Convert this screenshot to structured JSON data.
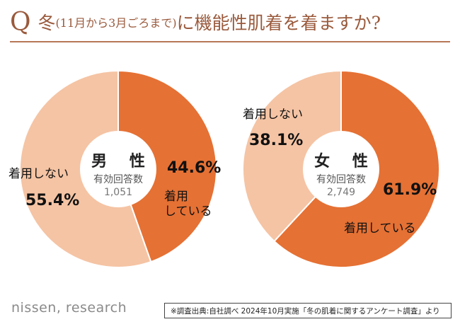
{
  "header": {
    "q_mark": "Q",
    "title_part1": "冬",
    "title_paren": "(11月から3月ごろまで)",
    "title_part2": "に機能性肌着を着ますか?"
  },
  "colors": {
    "wear": "#e57134",
    "not_wear": "#f5c4a4",
    "title": "#9a5a3c"
  },
  "chart_data": [
    {
      "type": "pie",
      "title": "男 性",
      "respondents_label": "有効回答数",
      "respondents": "1,051",
      "slices": [
        {
          "label": "着用している",
          "value": 44.6,
          "display": "44.6%"
        },
        {
          "label": "着用しない",
          "value": 55.4,
          "display": "55.4%"
        }
      ]
    },
    {
      "type": "pie",
      "title": "女 性",
      "respondents_label": "有効回答数",
      "respondents": "2,749",
      "slices": [
        {
          "label": "着用している",
          "value": 61.9,
          "display": "61.9%"
        },
        {
          "label": "着用しない",
          "value": 38.1,
          "display": "38.1%"
        }
      ]
    }
  ],
  "labels": {
    "male_wear_line1": "着用",
    "male_wear_line2": "している"
  },
  "footer": {
    "brand": "nissen, research",
    "source": "※調査出典:自社調べ 2024年10月実施「冬の肌着に関するアンケート調査」より"
  }
}
